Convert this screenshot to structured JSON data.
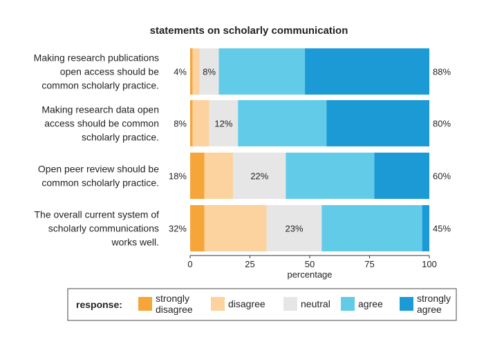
{
  "chart_data": {
    "type": "bar",
    "orientation": "horizontal",
    "stacked": true,
    "title": "statements on scholarly communication",
    "xlabel": "percentage",
    "ylabel": "",
    "xlim": [
      0,
      100
    ],
    "xticks": [
      "0",
      "25",
      "50",
      "75",
      "100"
    ],
    "grid": false,
    "legend_title": "response:",
    "legend_position": "bottom",
    "categories": [
      "Making research publications open access should be common scholarly practice.",
      "Making research data open access should be common scholarly practice.",
      "Open peer review should be common scholarly practice.",
      "The overall current system of scholarly communications works well."
    ],
    "category_lines": [
      [
        "Making research publications",
        "open access should be",
        "common scholarly practice."
      ],
      [
        "Making research data open",
        "access should be common",
        "scholarly practice."
      ],
      [
        "Open peer review should be",
        "common scholarly practice."
      ],
      [
        "The overall current system of",
        "scholarly communications",
        "works well."
      ]
    ],
    "series": [
      {
        "name": "strongly disagree",
        "label_lines": [
          "strongly",
          "disagree"
        ],
        "color": "#f5a53a",
        "values": [
          1,
          1,
          6,
          6
        ]
      },
      {
        "name": "disagree",
        "label_lines": [
          "disagree"
        ],
        "color": "#fcd39e",
        "values": [
          3,
          7,
          12,
          26
        ]
      },
      {
        "name": "neutral",
        "label_lines": [
          "neutral"
        ],
        "color": "#e6e6e6",
        "values": [
          8,
          12,
          22,
          23
        ]
      },
      {
        "name": "agree",
        "label_lines": [
          "agree"
        ],
        "color": "#62cbe8",
        "values": [
          36,
          37,
          37,
          42
        ]
      },
      {
        "name": "strongly agree",
        "label_lines": [
          "strongly",
          "agree"
        ],
        "color": "#1b9ad6",
        "values": [
          52,
          43,
          23,
          3
        ]
      }
    ],
    "left_labels": [
      "4%",
      "8%",
      "18%",
      "32%"
    ],
    "center_labels": [
      "8%",
      "12%",
      "22%",
      "23%"
    ],
    "right_labels": [
      "88%",
      "80%",
      "60%",
      "45%"
    ]
  }
}
